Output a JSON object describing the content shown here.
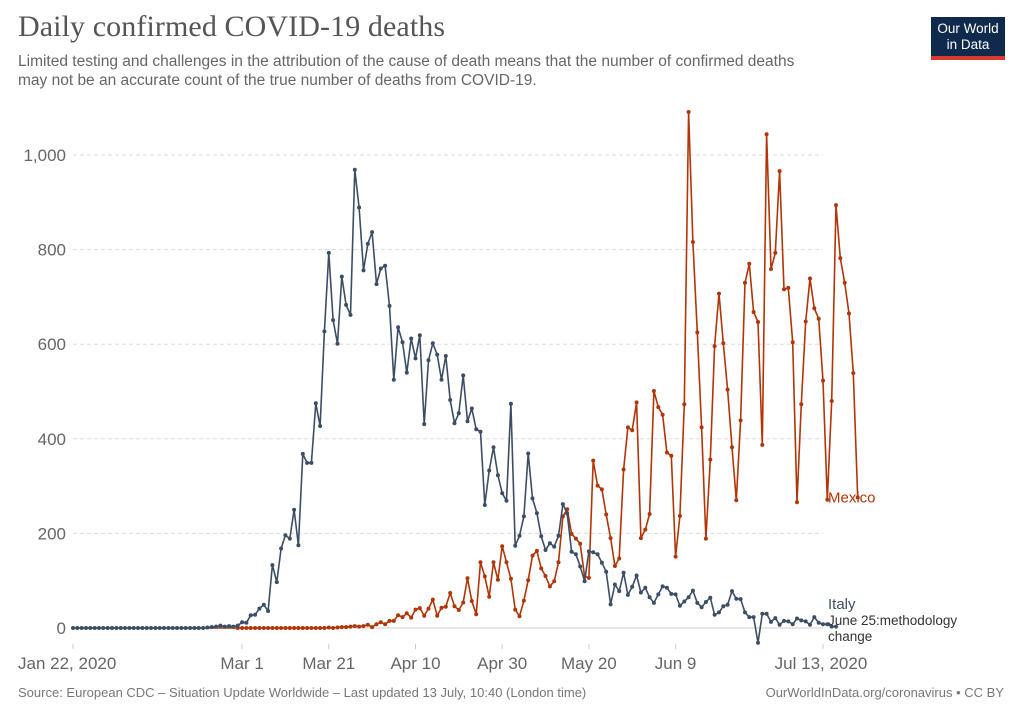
{
  "header": {
    "title": "Daily confirmed COVID-19 deaths",
    "subtitle_line1": "Limited testing and challenges in the attribution of the cause of death means that the number of confirmed deaths",
    "subtitle_line2": "may not be an accurate count of the true number of deaths from COVID-19.",
    "logo_line1": "Our World",
    "logo_line2": "in Data"
  },
  "footer": {
    "source": "Source: European CDC – Situation Update Worldwide – Last updated 13 July, 10:40 (London time)",
    "credit": "OurWorldInData.org/coronavirus • CC BY"
  },
  "colors": {
    "italy": "#3c4e66",
    "mexico": "#b13507",
    "logo_bg": "#0f2a4d",
    "logo_accent": "#d73c2c"
  },
  "chart_data": {
    "type": "line",
    "title": "Daily confirmed COVID-19 deaths",
    "xlabel": "",
    "ylabel": "",
    "x_start": "2020-01-22",
    "x_end": "2020-07-13",
    "x_unit": "days since 2020-01-22",
    "ylim": [
      0,
      1000
    ],
    "y_ticks": [
      0,
      200,
      400,
      600,
      800,
      1000
    ],
    "y_tick_labels": [
      "0",
      "200",
      "400",
      "600",
      "800",
      "1,000"
    ],
    "x_ticks": [
      0,
      39,
      59,
      79,
      99,
      119,
      139,
      173
    ],
    "x_tick_labels": [
      "Jan 22, 2020",
      "Mar 1",
      "Mar 21",
      "Apr 10",
      "Apr 30",
      "May 20",
      "Jun 9",
      "Jul 13, 2020"
    ],
    "grid": "horizontal dashed",
    "legend": "inline labels at right end of lines",
    "annotations": [
      {
        "series": "Italy",
        "text_line1": "June 25:methodology",
        "text_line2": "change"
      }
    ],
    "series": [
      {
        "name": "Italy",
        "label": "Italy",
        "start_day": 0,
        "values": [
          0,
          0,
          0,
          0,
          0,
          0,
          0,
          0,
          0,
          0,
          0,
          0,
          0,
          0,
          0,
          0,
          0,
          0,
          0,
          0,
          0,
          0,
          0,
          0,
          0,
          0,
          0,
          0,
          0,
          0,
          0,
          1,
          2,
          3,
          5,
          3,
          4,
          3,
          5,
          12,
          11,
          27,
          28,
          41,
          49,
          36,
          133,
          97,
          168,
          196,
          189,
          250,
          175,
          368,
          349,
          349,
          475,
          427,
          627,
          793,
          651,
          601,
          743,
          683,
          662,
          969,
          889,
          756,
          812,
          837,
          727,
          760,
          766,
          681,
          525,
          636,
          604,
          540,
          612,
          570,
          619,
          431,
          566,
          602,
          578,
          525,
          575,
          482,
          433,
          454,
          534,
          437,
          464,
          420,
          415,
          260,
          333,
          382,
          323,
          285,
          269,
          474,
          174,
          195,
          236,
          369,
          274,
          243,
          194,
          165,
          179,
          172,
          195,
          262,
          242,
          161,
          156,
          130,
          99,
          162,
          160,
          156,
          138,
          119,
          50,
          92,
          78,
          117,
          70,
          87,
          111,
          75,
          85,
          65,
          53,
          71,
          88,
          85,
          72,
          71,
          47,
          56,
          65,
          79,
          53,
          44,
          55,
          64,
          28,
          33,
          46,
          49,
          78,
          62,
          61,
          33,
          23,
          23,
          -31,
          30,
          30,
          13,
          21,
          7,
          15,
          14,
          8,
          20,
          16,
          14,
          7,
          23,
          11,
          8,
          8,
          3,
          3
        ]
      },
      {
        "name": "Mexico",
        "label": "Mexico",
        "start_day": 0,
        "values": [
          0,
          0,
          0,
          0,
          0,
          0,
          0,
          0,
          0,
          0,
          0,
          0,
          0,
          0,
          0,
          0,
          0,
          0,
          0,
          0,
          0,
          0,
          0,
          0,
          0,
          0,
          0,
          0,
          0,
          0,
          0,
          0,
          0,
          0,
          0,
          0,
          0,
          0,
          0,
          0,
          0,
          0,
          0,
          0,
          0,
          0,
          0,
          0,
          0,
          0,
          0,
          0,
          0,
          0,
          0,
          0,
          0,
          0,
          0,
          1,
          0,
          1,
          2,
          2,
          3,
          4,
          3,
          4,
          7,
          2,
          8,
          12,
          8,
          15,
          15,
          27,
          23,
          31,
          22,
          39,
          42,
          26,
          41,
          60,
          26,
          43,
          45,
          74,
          46,
          38,
          54,
          105,
          57,
          29,
          139,
          109,
          66,
          139,
          102,
          173,
          139,
          104,
          39,
          25,
          58,
          101,
          153,
          163,
          126,
          110,
          88,
          99,
          139,
          236,
          251,
          199,
          189,
          178,
          109,
          106,
          354,
          301,
          293,
          240,
          190,
          131,
          147,
          335,
          424,
          418,
          477,
          190,
          208,
          241,
          501,
          467,
          451,
          371,
          364,
          151,
          237,
          473,
          1091,
          816,
          625,
          424,
          189,
          356,
          596,
          707,
          602,
          504,
          382,
          270,
          439,
          730,
          770,
          668,
          647,
          387,
          1044,
          759,
          793,
          966,
          716,
          719,
          604,
          266,
          473,
          648,
          739,
          676,
          654,
          523,
          271,
          480,
          894,
          782,
          730,
          665,
          539,
          276
        ]
      }
    ]
  }
}
